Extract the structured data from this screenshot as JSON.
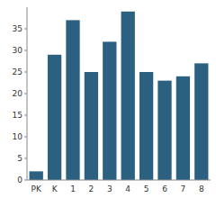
{
  "chart_data": {
    "type": "bar",
    "categories": [
      "PK",
      "K",
      "1",
      "2",
      "3",
      "4",
      "5",
      "6",
      "7",
      "8"
    ],
    "values": [
      2,
      29,
      37,
      25,
      32,
      39,
      25,
      23,
      24,
      27
    ],
    "color": "#2b6080",
    "ylim": [
      0,
      40
    ],
    "yticks": [
      0,
      5,
      10,
      15,
      20,
      25,
      30,
      35
    ],
    "grid": false
  }
}
